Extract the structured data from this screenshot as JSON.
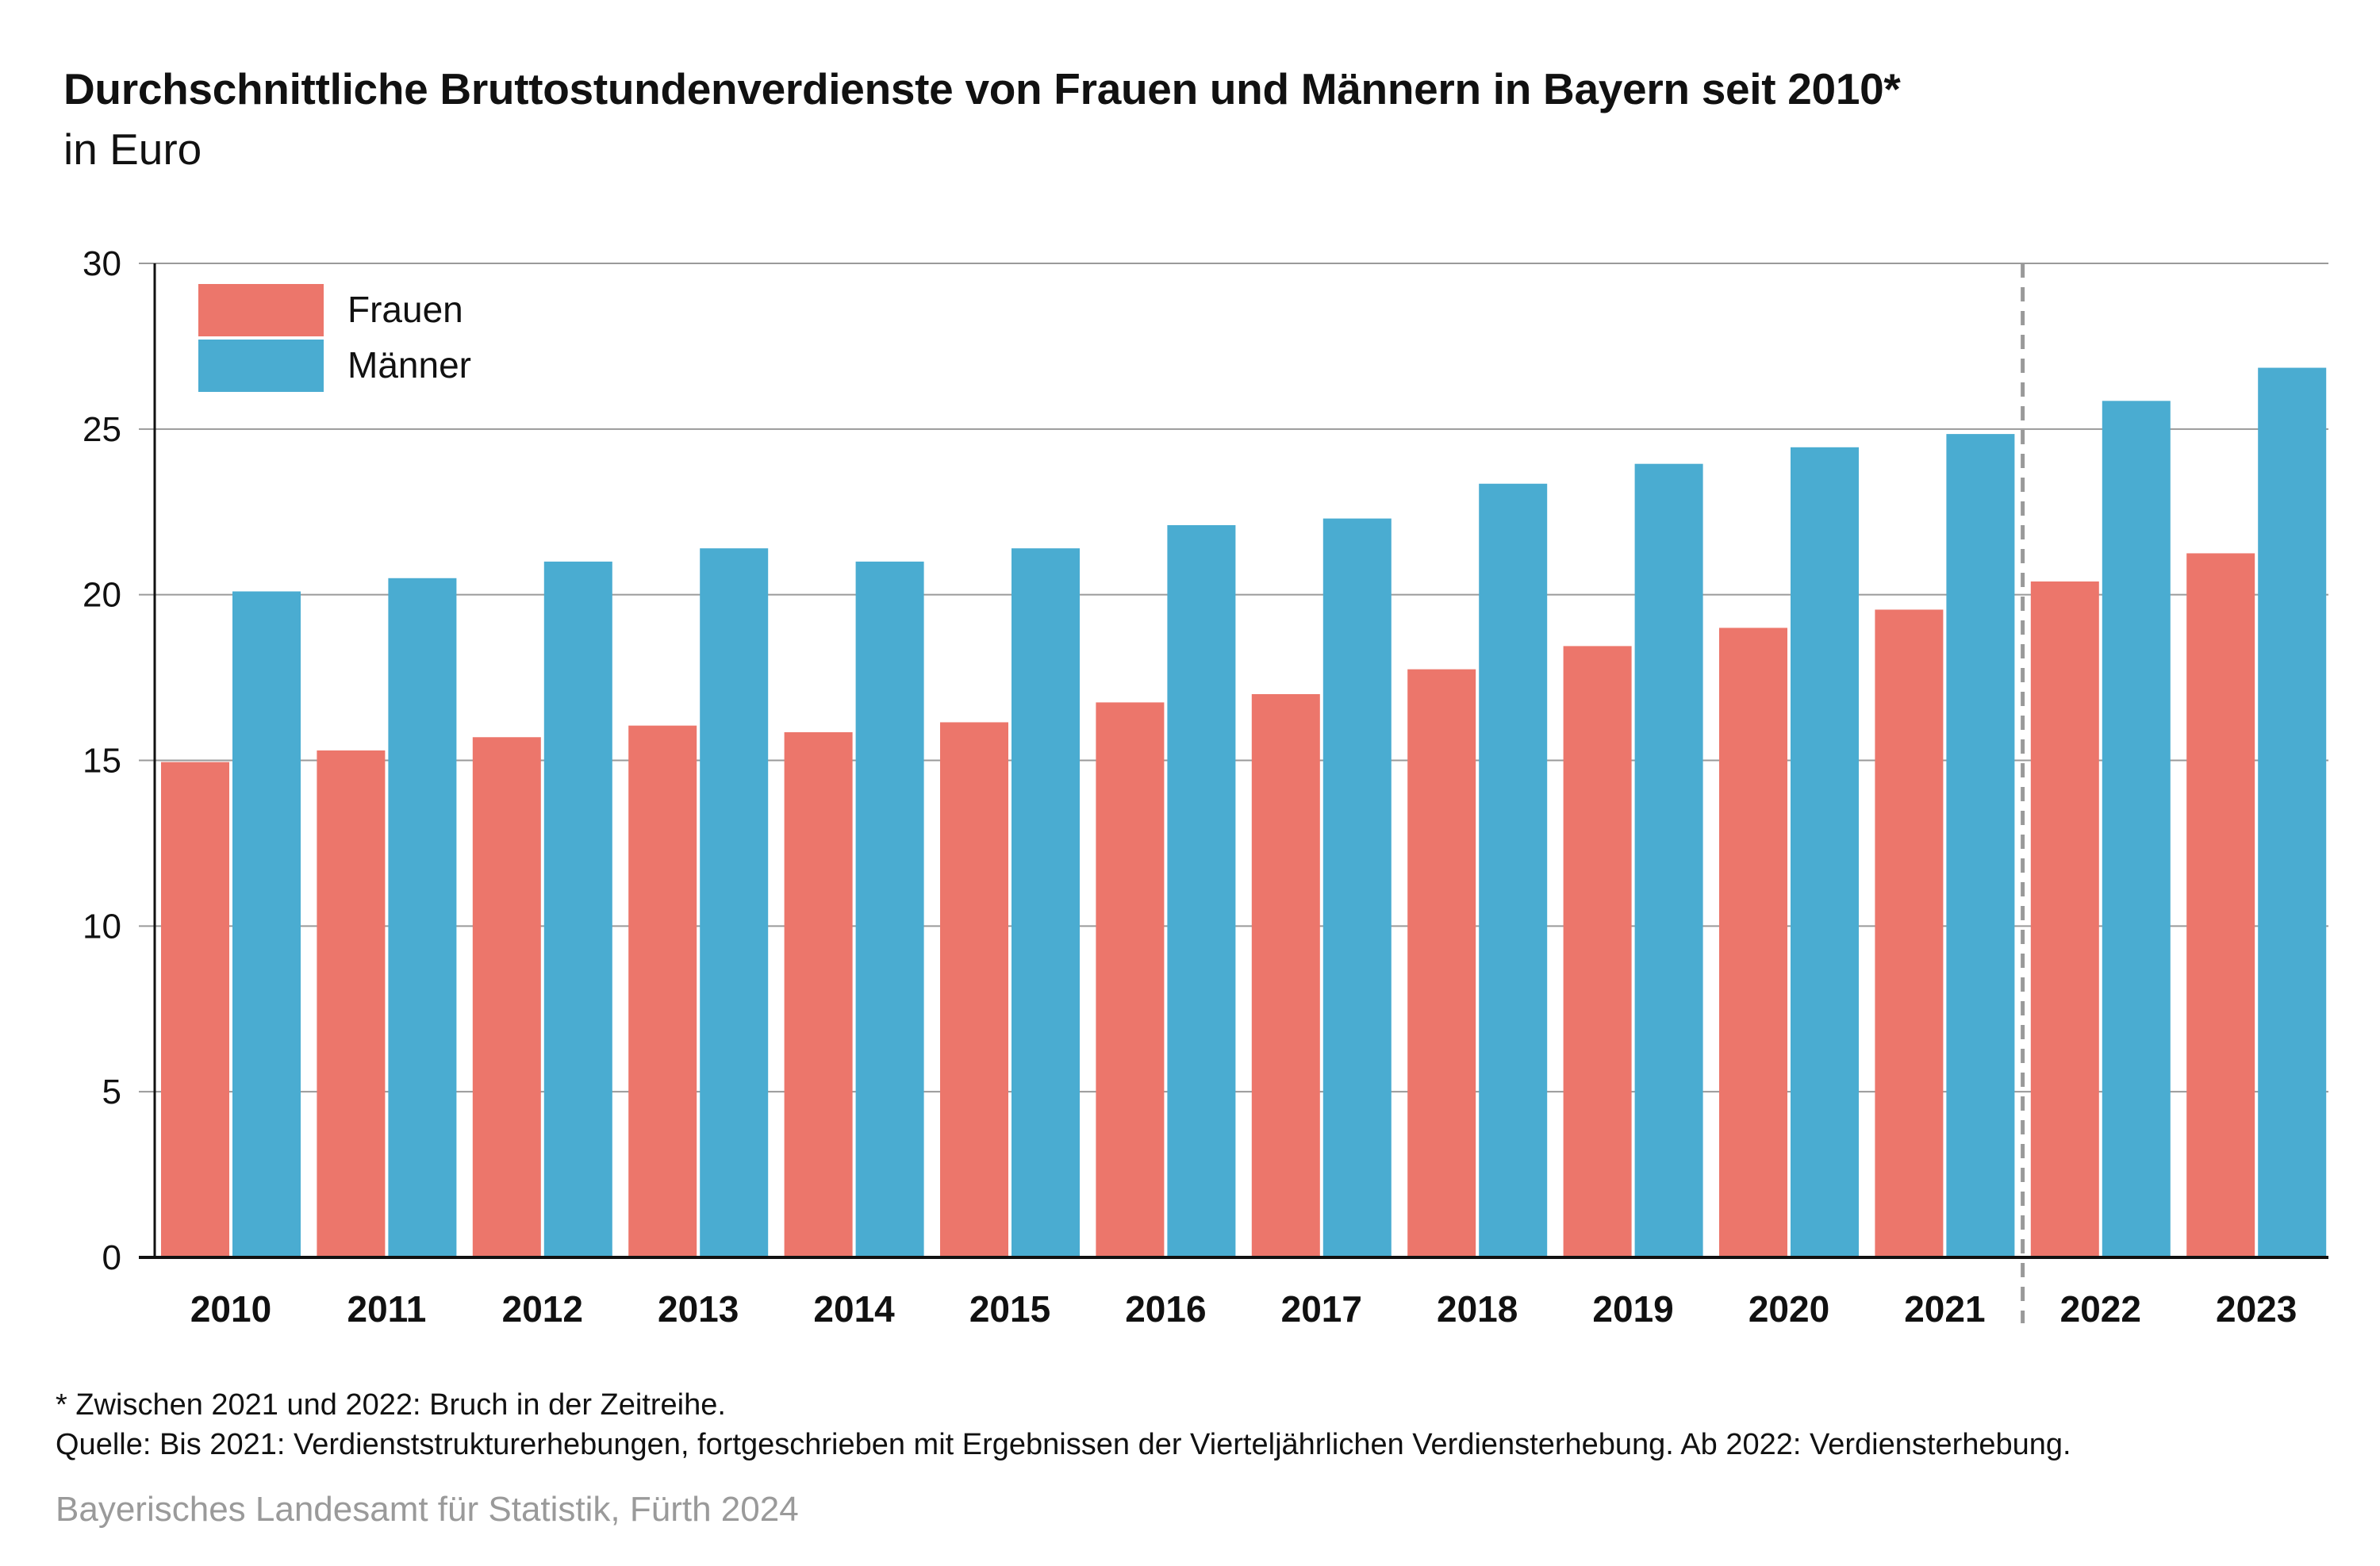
{
  "header": {
    "title": "Durchschnittliche Bruttostundenverdienste von Frauen und Männern in Bayern seit 2010*",
    "subtitle": "in Euro"
  },
  "colors": {
    "frauen": "#ec766b",
    "maenner": "#4aacd1",
    "grid": "#9a9a9a",
    "axis": "#111111",
    "break_line": "#9a9a9a"
  },
  "chart_data": {
    "type": "bar",
    "categories": [
      "2010",
      "2011",
      "2012",
      "2013",
      "2014",
      "2015",
      "2016",
      "2017",
      "2018",
      "2019",
      "2020",
      "2021",
      "2022",
      "2023"
    ],
    "series": [
      {
        "name": "Frauen",
        "values": [
          14.95,
          15.3,
          15.7,
          16.05,
          15.85,
          16.15,
          16.75,
          17.0,
          17.75,
          18.45,
          19.0,
          19.55,
          20.4,
          21.25
        ]
      },
      {
        "name": "Männer",
        "values": [
          20.1,
          20.5,
          21.0,
          21.4,
          21.0,
          21.4,
          22.1,
          22.3,
          23.35,
          23.95,
          24.45,
          24.85,
          25.85,
          26.85
        ]
      }
    ],
    "ylim": [
      0,
      30
    ],
    "yticks": [
      "0",
      "5",
      "10",
      "15",
      "20",
      "25",
      "30"
    ],
    "grid": true,
    "legend_position": "top-left",
    "break_between": [
      "2021",
      "2022"
    ]
  },
  "footer": {
    "note": "* Zwischen 2021 und 2022: Bruch in der Zeitreihe.",
    "source_note": "Quelle: Bis 2021: Verdienststrukturerhebungen, fortgeschrieben mit Ergebnissen der Vierteljährlichen Verdiensterhebung. Ab 2022: Verdiensterhebung.",
    "publisher": "Bayerisches Landesamt für Statistik, Fürth 2024"
  }
}
